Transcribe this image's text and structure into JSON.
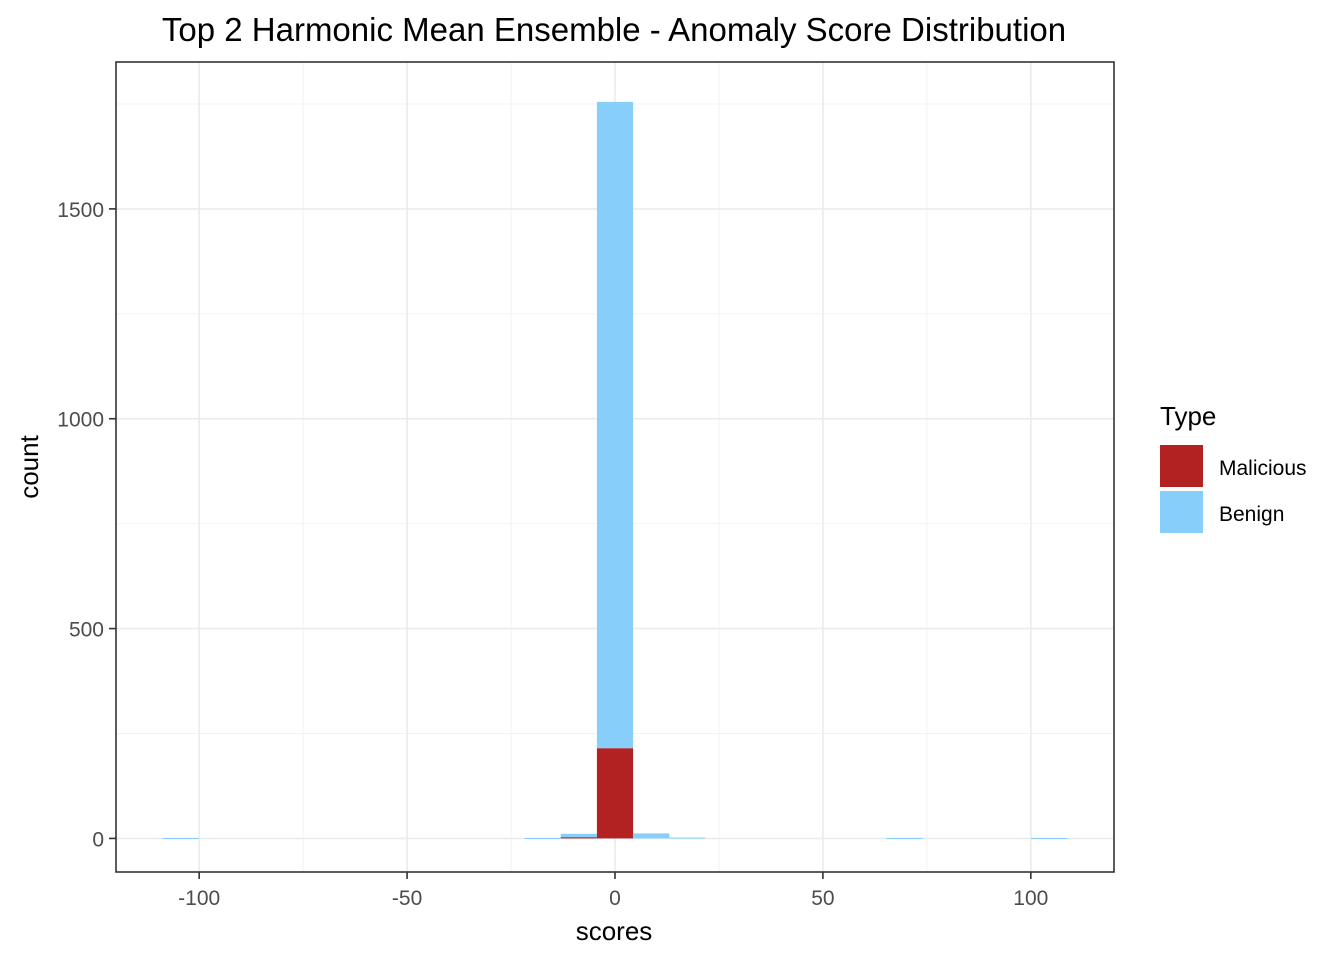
{
  "chart_data": {
    "type": "bar",
    "title": "Top 2 Harmonic Mean Ensemble - Anomaly Score Distribution",
    "xlabel": "scores",
    "ylabel": "count",
    "xlim": [
      -120,
      120
    ],
    "ylim": [
      -80,
      1850
    ],
    "x_ticks": [
      -100,
      -50,
      0,
      50,
      100
    ],
    "x_tick_labels": [
      "-100",
      "-50",
      "0",
      "50",
      "100"
    ],
    "y_ticks": [
      0,
      500,
      1000,
      1500
    ],
    "y_tick_labels": [
      "0",
      "500",
      "1000",
      "1500"
    ],
    "bin_width": 8.7,
    "grid": true,
    "stacked": true,
    "legend": {
      "title": "Type",
      "position": "right"
    },
    "series": [
      {
        "name": "Malicious",
        "color": "#b22222",
        "bins": [
          {
            "x": -8.7,
            "count": 3
          },
          {
            "x": 0,
            "count": 215
          }
        ]
      },
      {
        "name": "Benign",
        "color": "#87cefa",
        "bins": [
          {
            "x": -104.4,
            "count": 1
          },
          {
            "x": -17.4,
            "count": 1
          },
          {
            "x": -8.7,
            "count": 8
          },
          {
            "x": 0,
            "count": 1540
          },
          {
            "x": 8.7,
            "count": 12
          },
          {
            "x": 17.4,
            "count": 2
          },
          {
            "x": 69.6,
            "count": 1
          },
          {
            "x": 104.4,
            "count": 1
          }
        ]
      }
    ]
  }
}
